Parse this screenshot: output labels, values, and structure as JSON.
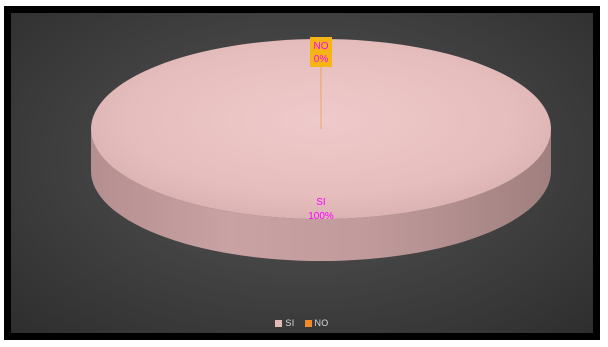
{
  "chart_data": {
    "type": "pie",
    "title": "",
    "categories": [
      "SI",
      "NO"
    ],
    "values": [
      100,
      0
    ],
    "data_labels": [
      {
        "name": "SI",
        "percent": "100%"
      },
      {
        "name": "NO",
        "percent": "0%"
      }
    ],
    "colors": {
      "SI": "#e3b9b9",
      "NO": "#f08a2a",
      "label_text": "#ff00ff",
      "no_label_box": "#f7b416"
    },
    "legend": {
      "position": "bottom",
      "entries": [
        {
          "name": "SI",
          "color": "#e3b9b9"
        },
        {
          "name": "NO",
          "color": "#f08a2a"
        }
      ]
    },
    "style": "3d"
  }
}
